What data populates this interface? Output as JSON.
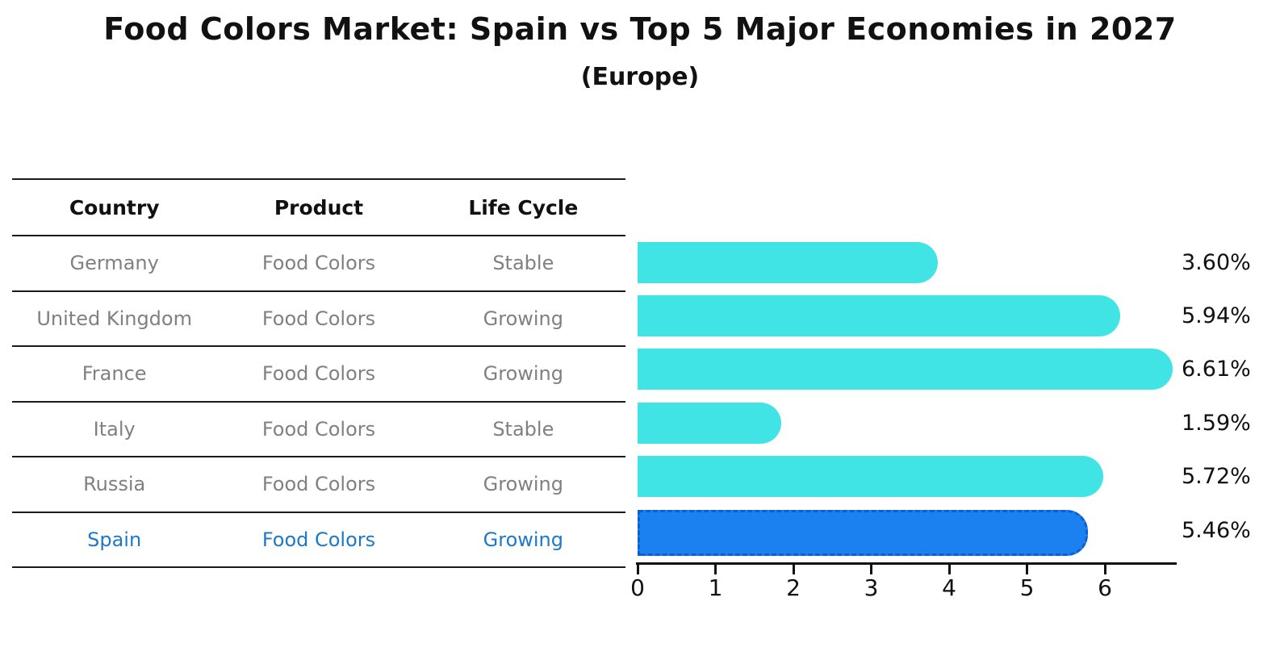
{
  "title": "Food Colors Market: Spain vs Top 5 Major Economies in 2027",
  "subtitle": "(Europe)",
  "table": {
    "headers": [
      "Country",
      "Product",
      "Life Cycle"
    ],
    "rows": [
      {
        "country": "Germany",
        "product": "Food Colors",
        "life_cycle": "Stable",
        "highlighted": false
      },
      {
        "country": "United Kingdom",
        "product": "Food Colors",
        "life_cycle": "Growing",
        "highlighted": false
      },
      {
        "country": "France",
        "product": "Food Colors",
        "life_cycle": "Growing",
        "highlighted": false
      },
      {
        "country": "Italy",
        "product": "Food Colors",
        "life_cycle": "Stable",
        "highlighted": false
      },
      {
        "country": "Russia",
        "product": "Food Colors",
        "life_cycle": "Growing",
        "highlighted": false
      },
      {
        "country": "Spain",
        "product": "Food Colors",
        "life_cycle": "Growing",
        "highlighted": true
      }
    ]
  },
  "chart_data": {
    "type": "bar",
    "orientation": "horizontal",
    "title": "Food Colors Market: Spain vs Top 5 Major Economies in 2027 (Europe)",
    "categories": [
      "Germany",
      "United Kingdom",
      "France",
      "Italy",
      "Russia",
      "Spain"
    ],
    "values": [
      3.6,
      5.94,
      6.61,
      1.59,
      5.72,
      5.46
    ],
    "value_labels": [
      "3.60%",
      "5.94%",
      "6.61%",
      "1.59%",
      "5.72%",
      "5.46%"
    ],
    "xlabel": "",
    "ylabel": "",
    "xlim": [
      0,
      7
    ],
    "x_ticks": [
      0,
      1,
      2,
      3,
      4,
      5,
      6
    ],
    "grid": false,
    "legend": false,
    "highlight_category": "Spain",
    "colors": {
      "bar_default": "#40E4E4",
      "bar_highlight": "#1B80F0",
      "bar_highlight_border": "#0D5FD6",
      "highlight_text": "#1E78C8",
      "row_text": "#808080",
      "header_text": "#111111",
      "axis": "#111111"
    }
  }
}
